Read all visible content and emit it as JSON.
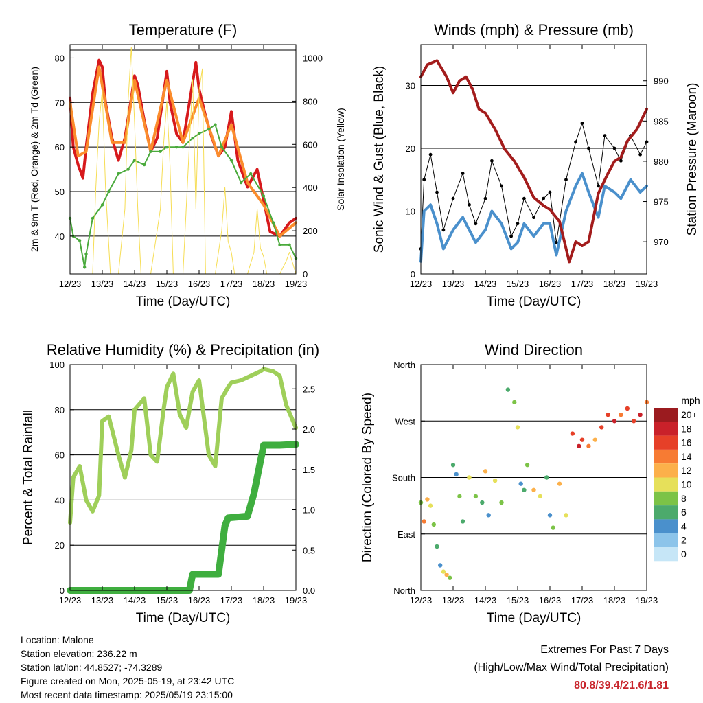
{
  "chart_data": [
    {
      "type": "line",
      "title": "Temperature (F)",
      "xlabel": "Time (Day/UTC)",
      "ylabel": "2m & 9m T (Red, Orange) & 2m Td (Green)",
      "ylabel_right": "Solar Insolation (Yellow)",
      "x_ticks": [
        "12/23",
        "13/23",
        "14/23",
        "15/23",
        "16/23",
        "17/23",
        "18/23",
        "19/23"
      ],
      "y_ticks": [
        "40",
        "50",
        "60",
        "70",
        "80"
      ],
      "y_right_ticks": [
        "0",
        "200",
        "400",
        "600",
        "800",
        "1000"
      ],
      "ylim": [
        31.5,
        83
      ],
      "y_right_lim": [
        0,
        1062
      ],
      "grid": "horizontal",
      "series": [
        {
          "name": "2m T",
          "color": "#d7191c",
          "x": [
            0,
            0.1,
            0.25,
            0.4,
            0.5,
            0.7,
            0.9,
            1.0,
            1.1,
            1.3,
            1.5,
            1.7,
            1.9,
            2.0,
            2.1,
            2.3,
            2.5,
            2.7,
            2.9,
            3.0,
            3.1,
            3.3,
            3.5,
            3.7,
            3.9,
            4.0,
            4.2,
            4.4,
            4.6,
            4.8,
            5.0,
            5.2,
            5.5,
            5.8,
            6.0,
            6.2,
            6.5,
            6.8,
            7.0
          ],
          "values": [
            71,
            60,
            56,
            53,
            60,
            72,
            79.5,
            78,
            70,
            62,
            57,
            62,
            71,
            76,
            74,
            66,
            59,
            62,
            72,
            77,
            70,
            63,
            61,
            70,
            79,
            73,
            67,
            62,
            58,
            60,
            68,
            57,
            51,
            55,
            48,
            41,
            40,
            43,
            44
          ]
        },
        {
          "name": "9m T",
          "color": "#fb8c2c",
          "x": [
            0,
            0.25,
            0.5,
            0.9,
            1.3,
            1.7,
            2.0,
            2.5,
            3.0,
            3.5,
            4.0,
            4.6,
            5.0,
            5.5,
            6.0,
            6.5,
            7.0
          ],
          "values": [
            70,
            58,
            59,
            78,
            61,
            61,
            75,
            59,
            75,
            61,
            71,
            58,
            65,
            52,
            47,
            40,
            43
          ]
        },
        {
          "name": "2m Td",
          "color": "#4aaa3c",
          "x": [
            0,
            0.1,
            0.3,
            0.45,
            0.5,
            0.7,
            1.0,
            1.2,
            1.5,
            1.8,
            2.0,
            2.3,
            2.5,
            2.8,
            3.0,
            3.3,
            3.5,
            3.8,
            4.0,
            4.3,
            4.5,
            4.7,
            5.0,
            5.3,
            5.6,
            6.0,
            6.3,
            6.5,
            6.8,
            7.0
          ],
          "values": [
            44,
            40,
            39,
            33,
            36,
            44,
            47,
            50,
            54,
            55,
            57,
            56,
            59,
            59,
            60,
            60,
            60,
            62,
            63,
            64,
            65,
            60,
            57,
            52,
            54,
            49,
            43,
            38,
            38,
            35
          ]
        },
        {
          "name": "Solar Insolation",
          "color": "#f6dd54",
          "axis": "right",
          "x": [
            0.7,
            0.8,
            0.9,
            1.0,
            1.1,
            1.25,
            1.5,
            1.7,
            1.8,
            1.9,
            2.0,
            2.1,
            2.2,
            2.5,
            2.8,
            2.9,
            3.0,
            3.1,
            3.2,
            3.5,
            3.7,
            3.8,
            3.9,
            4.0,
            4.1,
            4.2,
            4.5,
            4.7,
            4.8,
            4.9,
            5.0,
            5.1,
            5.2,
            5.5,
            5.7,
            5.8,
            5.9,
            6.0,
            6.1,
            6.2,
            6.5,
            6.7,
            6.8,
            6.9,
            7.0
          ],
          "values": [
            0,
            400,
            700,
            850,
            400,
            0,
            0,
            300,
            800,
            1050,
            700,
            300,
            0,
            0,
            300,
            600,
            800,
            500,
            0,
            0,
            600,
            900,
            300,
            850,
            950,
            0,
            0,
            200,
            400,
            150,
            100,
            0,
            0,
            0,
            100,
            300,
            120,
            80,
            0,
            0,
            0,
            60,
            100,
            50,
            0
          ]
        }
      ]
    },
    {
      "type": "line",
      "title": "Winds (mph) & Pressure (mb)",
      "xlabel": "Time (Day/UTC)",
      "ylabel": "Sonic Wind & Gust (Blue, Black)",
      "ylabel_right": "Station Pressure (Maroon)",
      "x_ticks": [
        "12/23",
        "13/23",
        "14/23",
        "15/23",
        "16/23",
        "17/23",
        "18/23",
        "19/23"
      ],
      "y_ticks": [
        "0",
        "10",
        "20",
        "30"
      ],
      "y_right_ticks": [
        "970",
        "975",
        "980",
        "985",
        "990"
      ],
      "ylim": [
        0,
        36.5
      ],
      "y_right_lim": [
        966,
        994.5
      ],
      "grid": "horizontal",
      "series": [
        {
          "name": "Gust",
          "color": "#000000",
          "x": [
            0,
            0.1,
            0.3,
            0.5,
            0.7,
            1.0,
            1.3,
            1.5,
            1.7,
            2.0,
            2.2,
            2.5,
            2.8,
            3.0,
            3.2,
            3.5,
            3.8,
            4.0,
            4.2,
            4.5,
            4.8,
            5.0,
            5.2,
            5.5,
            5.7,
            6.0,
            6.2,
            6.5,
            6.8,
            7.0
          ],
          "values": [
            4,
            15,
            19,
            13,
            7,
            12,
            16,
            11,
            8,
            12,
            18,
            14,
            6,
            8,
            12,
            9,
            12,
            13,
            5,
            15,
            21,
            24,
            20,
            14,
            22,
            20,
            18,
            22,
            19,
            21
          ]
        },
        {
          "name": "Wind",
          "color": "#4a90cc",
          "x": [
            0,
            0.1,
            0.3,
            0.5,
            0.7,
            1.0,
            1.3,
            1.5,
            1.7,
            2.0,
            2.2,
            2.5,
            2.8,
            3.0,
            3.2,
            3.5,
            3.8,
            4.0,
            4.2,
            4.5,
            4.8,
            5.0,
            5.2,
            5.5,
            5.7,
            6.0,
            6.2,
            6.5,
            6.8,
            7.0
          ],
          "values": [
            2,
            10,
            11,
            8,
            4,
            7,
            9,
            7,
            5,
            7,
            10,
            8,
            4,
            5,
            8,
            6,
            8,
            8,
            3,
            10,
            14,
            16,
            13,
            9,
            14,
            13,
            12,
            15,
            13,
            14
          ]
        },
        {
          "name": "Station Pressure",
          "color": "#a31c1c",
          "axis": "right",
          "x": [
            0,
            0.2,
            0.5,
            0.8,
            1.0,
            1.2,
            1.4,
            1.6,
            1.8,
            2.0,
            2.3,
            2.6,
            2.9,
            3.2,
            3.5,
            3.8,
            4.0,
            4.3,
            4.6,
            4.8,
            5.0,
            5.2,
            5.5,
            5.8,
            6.0,
            6.2,
            6.4,
            6.7,
            7.0
          ],
          "values": [
            990.5,
            992,
            992.5,
            990.5,
            988.5,
            990,
            990.5,
            989,
            986.5,
            986,
            984,
            981.5,
            980,
            978,
            975.5,
            974.5,
            974,
            972.5,
            967.5,
            970,
            969.5,
            970,
            976,
            978.5,
            980,
            980.5,
            982.5,
            984,
            986.5
          ]
        }
      ]
    },
    {
      "type": "line",
      "title": "Relative Humidity (%) & Precipitation (in)",
      "xlabel": "Time (Day/UTC)",
      "ylabel": "Percent & Total Rainfall",
      "x_ticks": [
        "12/23",
        "13/23",
        "14/23",
        "15/23",
        "16/23",
        "17/23",
        "18/23",
        "19/23"
      ],
      "y_ticks": [
        "0",
        "20",
        "40",
        "60",
        "80",
        "100"
      ],
      "y_right_ticks": [
        "0.0",
        "0.5",
        "1.0",
        "1.5",
        "2.0",
        "2.5"
      ],
      "ylim": [
        0,
        100
      ],
      "y_right_lim": [
        0,
        2.8
      ],
      "grid": "horizontal",
      "series": [
        {
          "name": "Relative Humidity",
          "color": "#9fcf5a",
          "x": [
            0,
            0.1,
            0.3,
            0.5,
            0.7,
            0.9,
            1.0,
            1.2,
            1.5,
            1.7,
            1.9,
            2.0,
            2.3,
            2.5,
            2.7,
            2.9,
            3.0,
            3.2,
            3.4,
            3.6,
            3.8,
            4.0,
            4.3,
            4.5,
            4.7,
            4.9,
            5.0,
            5.3,
            5.6,
            5.9,
            6.0,
            6.3,
            6.5,
            6.7,
            7.0
          ],
          "values": [
            30,
            50,
            55,
            40,
            35,
            42,
            75,
            77,
            60,
            50,
            62,
            80,
            85,
            60,
            57,
            80,
            90,
            96,
            78,
            72,
            88,
            93,
            60,
            55,
            85,
            90,
            92,
            93,
            95,
            97,
            98,
            97,
            95,
            82,
            72
          ]
        },
        {
          "name": "Total Precipitation",
          "color": "#3fae3f",
          "axis": "right",
          "x": [
            0,
            1,
            2,
            3,
            3.7,
            3.8,
            4.6,
            4.7,
            4.8,
            4.9,
            5.5,
            5.7,
            6.0,
            6.5,
            7.0
          ],
          "values": [
            0,
            0,
            0,
            0,
            0,
            0.2,
            0.2,
            0.5,
            0.8,
            0.9,
            0.92,
            1.2,
            1.8,
            1.8,
            1.81
          ]
        }
      ]
    },
    {
      "type": "scatter",
      "title": "Wind Direction",
      "xlabel": "Time (Day/UTC)",
      "ylabel": "Direction (Colored By Speed)",
      "x_ticks": [
        "12/23",
        "13/23",
        "14/23",
        "15/23",
        "16/23",
        "17/23",
        "18/23",
        "19/23"
      ],
      "y_ticks": [
        "North",
        "East",
        "South",
        "West",
        "North"
      ],
      "ylim": [
        0,
        360
      ],
      "grid": "horizontal",
      "legend": {
        "title": "mph",
        "labels": [
          "20+",
          "18",
          "16",
          "14",
          "12",
          "10",
          "8",
          "6",
          "4",
          "2",
          "0"
        ],
        "placement": "right"
      },
      "series": [
        {
          "name": "Wind Direction",
          "x": [
            0,
            0.1,
            0.2,
            0.3,
            0.4,
            0.5,
            0.6,
            0.7,
            0.8,
            0.9,
            1.0,
            1.1,
            1.2,
            1.3,
            1.5,
            1.7,
            1.9,
            2.0,
            2.1,
            2.3,
            2.5,
            2.7,
            2.9,
            3.0,
            3.1,
            3.2,
            3.3,
            3.5,
            3.7,
            3.9,
            4.0,
            4.1,
            4.3,
            4.5,
            4.7,
            4.9,
            5.0,
            5.2,
            5.4,
            5.6,
            5.8,
            6.0,
            6.2,
            6.4,
            6.6,
            6.8,
            7.0
          ],
          "values": [
            140,
            110,
            145,
            135,
            105,
            70,
            40,
            30,
            25,
            20,
            200,
            185,
            150,
            110,
            180,
            150,
            140,
            190,
            120,
            175,
            140,
            320,
            300,
            260,
            170,
            160,
            200,
            160,
            150,
            180,
            120,
            100,
            170,
            120,
            250,
            230,
            240,
            230,
            240,
            260,
            280,
            270,
            280,
            290,
            270,
            280,
            300
          ],
          "speeds": [
            8,
            14,
            12,
            10,
            8,
            6,
            4,
            10,
            12,
            8,
            6,
            4,
            8,
            6,
            10,
            8,
            6,
            12,
            4,
            10,
            8,
            6,
            8,
            10,
            4,
            6,
            8,
            12,
            10,
            6,
            4,
            8,
            12,
            10,
            16,
            18,
            16,
            14,
            12,
            16,
            16,
            18,
            14,
            16,
            16,
            18,
            14
          ]
        }
      ]
    }
  ],
  "footer": {
    "location": "Location: Malone",
    "elevation": "Station elevation: 236.22 m",
    "latlon": "Station lat/lon: 44.8527; -74.3289",
    "created": "Figure created on Mon, 2025-05-19, at 23:42 UTC",
    "recent": "Most recent data timestamp: 2025/05/19 23:15:00",
    "extremes_title": "Extremes For Past 7 Days",
    "extremes_subtitle": "(High/Low/Max Wind/Total Precipitation)",
    "extremes_values": "80.8/39.4/21.6/1.81"
  },
  "colors": {
    "speed_scale": [
      "#c6e6f7",
      "#8cc4ea",
      "#4a90cc",
      "#4caa6c",
      "#7cc347",
      "#e6e05a",
      "#fcb04a",
      "#f77b33",
      "#e64028",
      "#c9212a",
      "#9b1b1f"
    ]
  }
}
